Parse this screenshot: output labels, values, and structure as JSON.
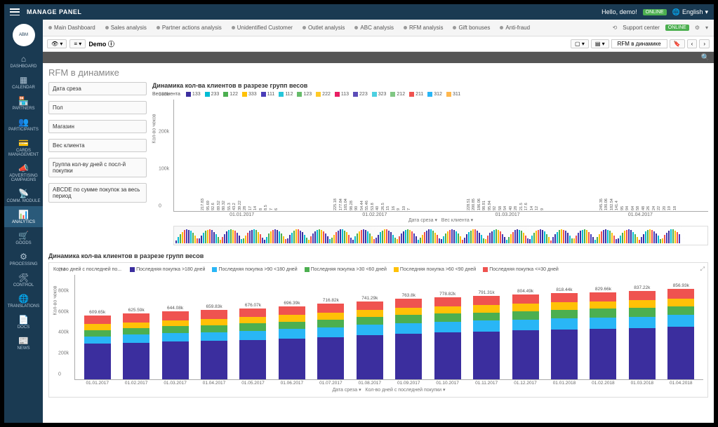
{
  "topbar": {
    "title": "MANAGE PANEL",
    "hello": "Hello, demo!",
    "online": "ONLINE",
    "language": "English"
  },
  "sidebar": {
    "logo": "ABM",
    "items": [
      {
        "icon": "⌂",
        "label": "DASHBOARD"
      },
      {
        "icon": "▦",
        "label": "CALENDAR"
      },
      {
        "icon": "🏪",
        "label": "PARTNERS"
      },
      {
        "icon": "👥",
        "label": "PARTICIPANTS"
      },
      {
        "icon": "💳",
        "label": "CARDS MANAGEMENT"
      },
      {
        "icon": "📣",
        "label": "ADVERTISING CAMPAIGNS"
      },
      {
        "icon": "📡",
        "label": "COMM. MODULE"
      },
      {
        "icon": "📊",
        "label": "ANALYTICS",
        "active": true
      },
      {
        "icon": "🛒",
        "label": "GOODS"
      },
      {
        "icon": "⚙",
        "label": "PROCESSING"
      },
      {
        "icon": "🛠",
        "label": "CONTROL"
      },
      {
        "icon": "🌐",
        "label": "TRANSLATIONS"
      },
      {
        "icon": "📄",
        "label": "DOCS"
      },
      {
        "icon": "📰",
        "label": "NEWS"
      }
    ]
  },
  "tabs": {
    "items": [
      "Main Dashboard",
      "Sales analysis",
      "Partner actions analysis",
      "Unidentified Customer",
      "Outlet analysis",
      "ABC analysis",
      "RFM analysis",
      "Gift bonuses",
      "Anti-fraud"
    ],
    "support": "Support center",
    "support_badge": "ONLINE"
  },
  "toolbar": {
    "demo": "Demo",
    "breadcrumb": "RFM в динамике"
  },
  "page": {
    "title": "RFM в динамике",
    "filters": [
      "Дата среза",
      "Пол",
      "Магазин",
      "Вес клиента",
      "Группа кол-ву дней с посл-й покупки",
      "ABCDE по сумме покупок за весь период"
    ]
  },
  "chart1": {
    "title": "Динамика кол-ва клиентов в разрезе групп весов",
    "legend_label": "Вес клиента",
    "series": [
      {
        "name": "133",
        "color": "#3b2e9e"
      },
      {
        "name": "233",
        "color": "#00bcd4"
      },
      {
        "name": "122",
        "color": "#4caf50"
      },
      {
        "name": "333",
        "color": "#ffc107"
      },
      {
        "name": "111",
        "color": "#4a3db8"
      },
      {
        "name": "112",
        "color": "#26c6da"
      },
      {
        "name": "123",
        "color": "#66bb6a"
      },
      {
        "name": "222",
        "color": "#ffca28"
      },
      {
        "name": "113",
        "color": "#e91e63"
      },
      {
        "name": "223",
        "color": "#5c4db8"
      },
      {
        "name": "323",
        "color": "#4dd0e1"
      },
      {
        "name": "212",
        "color": "#81c784"
      },
      {
        "name": "211",
        "color": "#ef5350"
      },
      {
        "name": "312",
        "color": "#29b6f6"
      },
      {
        "name": "311",
        "color": "#ffb74d"
      }
    ],
    "ylim": 300,
    "yticks": [
      0,
      100,
      200,
      300
    ],
    "ytick_labels": [
      "0",
      "100k",
      "200k",
      "300k"
    ],
    "ylabel": "Кол-во чеков",
    "x_axis_label_a": "Дата среза",
    "x_axis_label_b": "Вес клиента",
    "groups": [
      {
        "date": "01.01.2017",
        "bars": [
          {
            "v": 217.83,
            "c": "#3b2e9e"
          },
          {
            "v": 95.69,
            "c": "#00bcd4"
          },
          {
            "v": 92.6,
            "c": "#4caf50"
          },
          {
            "v": 89.52,
            "c": "#ffc107"
          },
          {
            "v": 80.32,
            "c": "#4a3db8"
          },
          {
            "v": 55.3,
            "c": "#26c6da"
          },
          {
            "v": 43.2,
            "c": "#66bb6a"
          },
          {
            "v": 39.22,
            "c": "#ffca28"
          },
          {
            "v": 28.0,
            "c": "#e91e63"
          },
          {
            "v": 17.0,
            "c": "#5c4db8"
          },
          {
            "v": 14.0,
            "c": "#4dd0e1"
          },
          {
            "v": 8.0,
            "c": "#81c784"
          },
          {
            "v": 8.5,
            "c": "#ef5350"
          },
          {
            "v": 7.0,
            "c": "#29b6f6"
          },
          {
            "v": 6.0,
            "c": "#ffb74d"
          }
        ]
      },
      {
        "date": "01.02.2017",
        "bars": [
          {
            "v": 225.18,
            "c": "#3b2e9e"
          },
          {
            "v": 177.84,
            "c": "#00bcd4"
          },
          {
            "v": 165.04,
            "c": "#4caf50"
          },
          {
            "v": 98.28,
            "c": "#ffc107"
          },
          {
            "v": 90.0,
            "c": "#4a3db8"
          },
          {
            "v": 54.44,
            "c": "#26c6da"
          },
          {
            "v": 55.46,
            "c": "#66bb6a"
          },
          {
            "v": 53.8,
            "c": "#ffca28"
          },
          {
            "v": 40.0,
            "c": "#e91e63"
          },
          {
            "v": 26.5,
            "c": "#5c4db8"
          },
          {
            "v": 15.0,
            "c": "#4dd0e1"
          },
          {
            "v": 16.0,
            "c": "#81c784"
          },
          {
            "v": 9.0,
            "c": "#ef5350"
          },
          {
            "v": 10.0,
            "c": "#29b6f6"
          },
          {
            "v": 7.0,
            "c": "#ffb74d"
          }
        ]
      },
      {
        "date": "01.03.2017",
        "bars": [
          {
            "v": 228.51,
            "c": "#3b2e9e"
          },
          {
            "v": 200.85,
            "c": "#00bcd4"
          },
          {
            "v": 186.06,
            "c": "#4caf50"
          },
          {
            "v": 98.91,
            "c": "#ffc107"
          },
          {
            "v": 95.94,
            "c": "#4a3db8"
          },
          {
            "v": 92.0,
            "c": "#26c6da"
          },
          {
            "v": 58.0,
            "c": "#66bb6a"
          },
          {
            "v": 54.0,
            "c": "#ffca28"
          },
          {
            "v": 40.0,
            "c": "#e91e63"
          },
          {
            "v": 28.0,
            "c": "#5c4db8"
          },
          {
            "v": 21.5,
            "c": "#4dd0e1"
          },
          {
            "v": 17.6,
            "c": "#81c784"
          },
          {
            "v": 14.0,
            "c": "#ef5350"
          },
          {
            "v": 12.0,
            "c": "#29b6f6"
          },
          {
            "v": 9.0,
            "c": "#ffb74d"
          }
        ]
      },
      {
        "date": "01.04.2017",
        "bars": [
          {
            "v": 245.35,
            "c": "#3b2e9e"
          },
          {
            "v": 190.06,
            "c": "#00bcd4"
          },
          {
            "v": 182.54,
            "c": "#4caf50"
          },
          {
            "v": 141.4,
            "c": "#ffc107"
          },
          {
            "v": 95.0,
            "c": "#4a3db8"
          },
          {
            "v": 94.0,
            "c": "#26c6da"
          },
          {
            "v": 64.0,
            "c": "#66bb6a"
          },
          {
            "v": 58.0,
            "c": "#ffca28"
          },
          {
            "v": 48.0,
            "c": "#e91e63"
          },
          {
            "v": 26.0,
            "c": "#5c4db8"
          },
          {
            "v": 24.0,
            "c": "#4dd0e1"
          },
          {
            "v": 22.0,
            "c": "#81c784"
          },
          {
            "v": 20.0,
            "c": "#ef5350"
          },
          {
            "v": 19.0,
            "c": "#29b6f6"
          },
          {
            "v": 18.0,
            "c": "#ffb74d"
          }
        ]
      }
    ]
  },
  "chart2": {
    "section_title": "Динамика кол-ва клиентов в разрезе групп весов",
    "legend_label": "Кол-во дней с последней по...",
    "series": [
      {
        "name": "Последняя покупка >180 дней",
        "color": "#3b2e9e"
      },
      {
        "name": "Последняя покупка >90 <180 дней",
        "color": "#29b6f6"
      },
      {
        "name": "Последняя покупка >30 <60 дней",
        "color": "#4caf50"
      },
      {
        "name": "Последняя покупка >60 <90 дней",
        "color": "#ffc107"
      },
      {
        "name": "Последняя покупка <=30 дней",
        "color": "#ef5350"
      }
    ],
    "ylim": 1000,
    "yticks": [
      0,
      200,
      400,
      600,
      800,
      1000
    ],
    "ytick_labels": [
      "0",
      "200k",
      "400k",
      "600k",
      "800k",
      "1M"
    ],
    "ylabel": "Кол-во чеков",
    "x_axis_label_a": "Дата среза",
    "x_axis_label_b": "Кол-во дней с последней покупки",
    "stacks": [
      {
        "date": "01.01.2017",
        "total": "609.65k",
        "segs": [
          340,
          70,
          60,
          55,
          85
        ]
      },
      {
        "date": "01.02.2017",
        "total": "625.59k",
        "segs": [
          350,
          75,
          62,
          56,
          83
        ]
      },
      {
        "date": "01.03.2017",
        "total": "644.08k",
        "segs": [
          360,
          80,
          64,
          58,
          82
        ]
      },
      {
        "date": "01.04.2017",
        "total": "659.83k",
        "segs": [
          365,
          85,
          66,
          60,
          84
        ]
      },
      {
        "date": "01.05.2017",
        "total": "676.07k",
        "segs": [
          375,
          88,
          68,
          62,
          83
        ]
      },
      {
        "date": "01.06.2017",
        "total": "696.39k",
        "segs": [
          385,
          92,
          70,
          64,
          85
        ]
      },
      {
        "date": "01.07.2017",
        "total": "716.82k",
        "segs": [
          400,
          95,
          72,
          65,
          85
        ]
      },
      {
        "date": "01.08.2017",
        "total": "741.29k",
        "segs": [
          420,
          98,
          74,
          66,
          83
        ]
      },
      {
        "date": "01.09.2017",
        "total": "763.8k",
        "segs": [
          435,
          100,
          76,
          67,
          86
        ]
      },
      {
        "date": "01.10.2017",
        "total": "778.82k",
        "segs": [
          445,
          102,
          77,
          68,
          87
        ]
      },
      {
        "date": "01.11.2017",
        "total": "791.31k",
        "segs": [
          455,
          103,
          78,
          69,
          86
        ]
      },
      {
        "date": "01.12.2017",
        "total": "804.49k",
        "segs": [
          465,
          105,
          79,
          70,
          85
        ]
      },
      {
        "date": "01.01.2018",
        "total": "818.44k",
        "segs": [
          475,
          107,
          80,
          71,
          85
        ]
      },
      {
        "date": "01.02.2018",
        "total": "829.66k",
        "segs": [
          482,
          108,
          81,
          72,
          87
        ]
      },
      {
        "date": "01.03.2018",
        "total": "837.22k",
        "segs": [
          487,
          109,
          82,
          73,
          86
        ]
      },
      {
        "date": "01.04.2018",
        "total": "856.93k",
        "segs": [
          500,
          111,
          83,
          74,
          89
        ]
      }
    ]
  }
}
